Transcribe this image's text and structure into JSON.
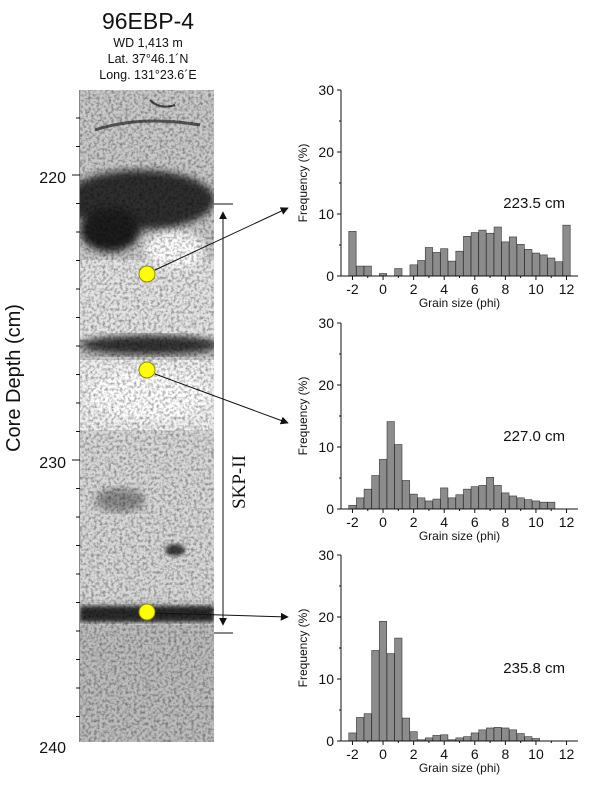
{
  "core": {
    "id": "96EBP-4",
    "wd": "WD 1,413 m",
    "lat": "Lat. 37°46.1´N",
    "long": "Long. 131°23.6´E",
    "axis_label": "Core Depth (cm)",
    "depth_ticks": [
      "220",
      "230",
      "240"
    ],
    "unit_label": "SKP-II"
  },
  "chart_data": [
    {
      "type": "bar",
      "sample_label": "223.5 cm",
      "xlabel": "Grain size (phi)",
      "ylabel": "Frequency (%)",
      "ylim": [
        0,
        30
      ],
      "yticks": [
        "0",
        "10",
        "20",
        "30"
      ],
      "xticks": [
        "-2",
        "0",
        "2",
        "4",
        "6",
        "8",
        "10",
        "12"
      ],
      "x": [
        -2,
        -1.5,
        -1,
        -0.5,
        0,
        0.5,
        1,
        1.5,
        2,
        2.5,
        3,
        3.5,
        4,
        4.5,
        5,
        5.5,
        6,
        6.5,
        7,
        7.5,
        8,
        8.5,
        9,
        9.5,
        10,
        10.5,
        11,
        11.5,
        12
      ],
      "values": [
        7.2,
        1.6,
        1.6,
        0,
        0.4,
        0,
        1.2,
        0,
        1.8,
        2.5,
        4.6,
        3.8,
        4.4,
        2.4,
        4.0,
        6.4,
        7.0,
        7.4,
        6.9,
        7.9,
        5.5,
        6.3,
        5.1,
        4.3,
        3.7,
        3.4,
        2.9,
        2.3,
        8.2
      ]
    },
    {
      "type": "bar",
      "sample_label": "227.0 cm",
      "xlabel": "Grain size (phi)",
      "ylabel": "Frequency (%)",
      "ylim": [
        0,
        30
      ],
      "yticks": [
        "0",
        "10",
        "20",
        "30"
      ],
      "xticks": [
        "-2",
        "0",
        "2",
        "4",
        "6",
        "8",
        "10",
        "12"
      ],
      "x": [
        -2,
        -1.5,
        -1,
        -0.5,
        0,
        0.5,
        1,
        1.5,
        2,
        2.5,
        3,
        3.5,
        4,
        4.5,
        5,
        5.5,
        6,
        6.5,
        7,
        7.5,
        8,
        8.5,
        9,
        9.5,
        10,
        10.5,
        11,
        11.5,
        12
      ],
      "values": [
        0.6,
        1.8,
        3.2,
        5.4,
        8.0,
        14.1,
        10.4,
        4.6,
        2.4,
        1.8,
        1.3,
        1.6,
        3.4,
        1.8,
        2.3,
        3.2,
        3.6,
        3.8,
        5.1,
        3.8,
        2.6,
        2.1,
        1.8,
        1.5,
        1.3,
        1.1,
        1.1,
        0,
        0
      ]
    },
    {
      "type": "bar",
      "sample_label": "235.8 cm",
      "xlabel": "Grain size (phi)",
      "ylabel": "Frequency (%)",
      "ylim": [
        0,
        30
      ],
      "yticks": [
        "0",
        "10",
        "20",
        "30"
      ],
      "xticks": [
        "-2",
        "0",
        "2",
        "4",
        "6",
        "8",
        "10",
        "12"
      ],
      "x": [
        -2,
        -1.5,
        -1,
        -0.5,
        0,
        0.5,
        1,
        1.5,
        2,
        2.5,
        3,
        3.5,
        4,
        4.5,
        5,
        5.5,
        6,
        6.5,
        7,
        7.5,
        8,
        8.5,
        9,
        9.5,
        10,
        10.5,
        11,
        11.5,
        12
      ],
      "values": [
        1.3,
        3.8,
        4.4,
        14.6,
        19.3,
        14.1,
        16.6,
        3.7,
        1.5,
        0.2,
        0.5,
        0.9,
        1.0,
        0.2,
        0.5,
        0.7,
        1.3,
        1.8,
        2.1,
        2.2,
        2.1,
        1.8,
        1.2,
        0.7,
        0.4,
        0,
        0,
        0,
        0
      ]
    }
  ]
}
